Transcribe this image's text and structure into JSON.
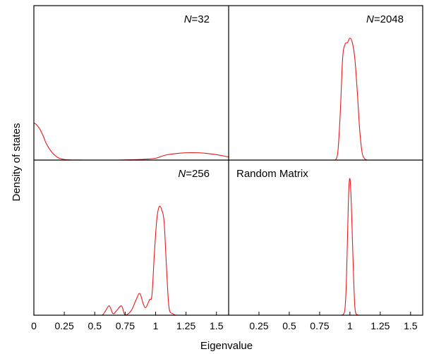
{
  "chart_data": {
    "type": "line",
    "xlabel": "Eigenvalue",
    "ylabel": "Density of states",
    "line_color": "#e41a1c",
    "axis_color": "#000000",
    "xlim": [
      0,
      1.6
    ],
    "left_xticks": [
      "0",
      "0.25",
      "0.5",
      "0.75",
      "1",
      "1.25",
      "1.5"
    ],
    "right_xticks": [
      "0.25",
      "0.5",
      "0.75",
      "1",
      "1.25",
      "1.5"
    ],
    "grid": false,
    "panels": [
      {
        "id": "n32",
        "label_prefix": "N",
        "label_suffix": "=32",
        "label_position": "top-right",
        "ylim": [
          0,
          1
        ],
        "x": [
          0,
          0.02,
          0.05,
          0.08,
          0.1,
          0.13,
          0.16,
          0.2,
          0.25,
          0.3,
          0.4,
          0.5,
          0.6,
          0.7,
          0.8,
          0.9,
          1.0,
          1.05,
          1.1,
          1.2,
          1.3,
          1.4,
          1.5,
          1.6
        ],
        "y": [
          0.24,
          0.23,
          0.2,
          0.15,
          0.11,
          0.07,
          0.04,
          0.015,
          0.004,
          0.001,
          0.0,
          0.0,
          0.0,
          0.0,
          0.002,
          0.005,
          0.012,
          0.025,
          0.035,
          0.045,
          0.048,
          0.045,
          0.035,
          0.02
        ]
      },
      {
        "id": "n2048",
        "label_prefix": "N",
        "label_suffix": "=2048",
        "label_position": "top-right",
        "ylim": [
          0,
          1
        ],
        "x": [
          0.88,
          0.9,
          0.92,
          0.94,
          0.96,
          0.98,
          1.0,
          1.02,
          1.04,
          1.06,
          1.08,
          1.1,
          1.12,
          1.14
        ],
        "y": [
          0.0,
          0.05,
          0.3,
          0.66,
          0.75,
          0.76,
          0.79,
          0.76,
          0.66,
          0.45,
          0.2,
          0.05,
          0.01,
          0.0
        ]
      },
      {
        "id": "n256",
        "label_prefix": "N",
        "label_suffix": "=256",
        "label_position": "top-right",
        "ylim": [
          0,
          1
        ],
        "x": [
          0.5,
          0.56,
          0.59,
          0.62,
          0.65,
          0.68,
          0.72,
          0.75,
          0.8,
          0.84,
          0.87,
          0.9,
          0.92,
          0.95,
          0.97,
          0.99,
          1.01,
          1.03,
          1.05,
          1.07,
          1.09,
          1.11,
          1.14,
          1.17
        ],
        "y": [
          0.0,
          0.0,
          0.03,
          0.06,
          0.01,
          0.03,
          0.06,
          0.0,
          0.03,
          0.1,
          0.14,
          0.07,
          0.05,
          0.1,
          0.13,
          0.4,
          0.62,
          0.7,
          0.68,
          0.6,
          0.3,
          0.05,
          0.01,
          0.0
        ]
      },
      {
        "id": "random",
        "label_prefix": "",
        "label_suffix": "Random Matrix",
        "label_position": "top-left",
        "ylim": [
          0,
          1
        ],
        "x": [
          0.93,
          0.95,
          0.96,
          0.97,
          0.98,
          0.99,
          1.0,
          1.01,
          1.02,
          1.03,
          1.04,
          1.05,
          1.07
        ],
        "y": [
          0.0,
          0.01,
          0.05,
          0.2,
          0.5,
          0.8,
          0.88,
          0.75,
          0.5,
          0.25,
          0.06,
          0.01,
          0.0
        ]
      }
    ]
  }
}
